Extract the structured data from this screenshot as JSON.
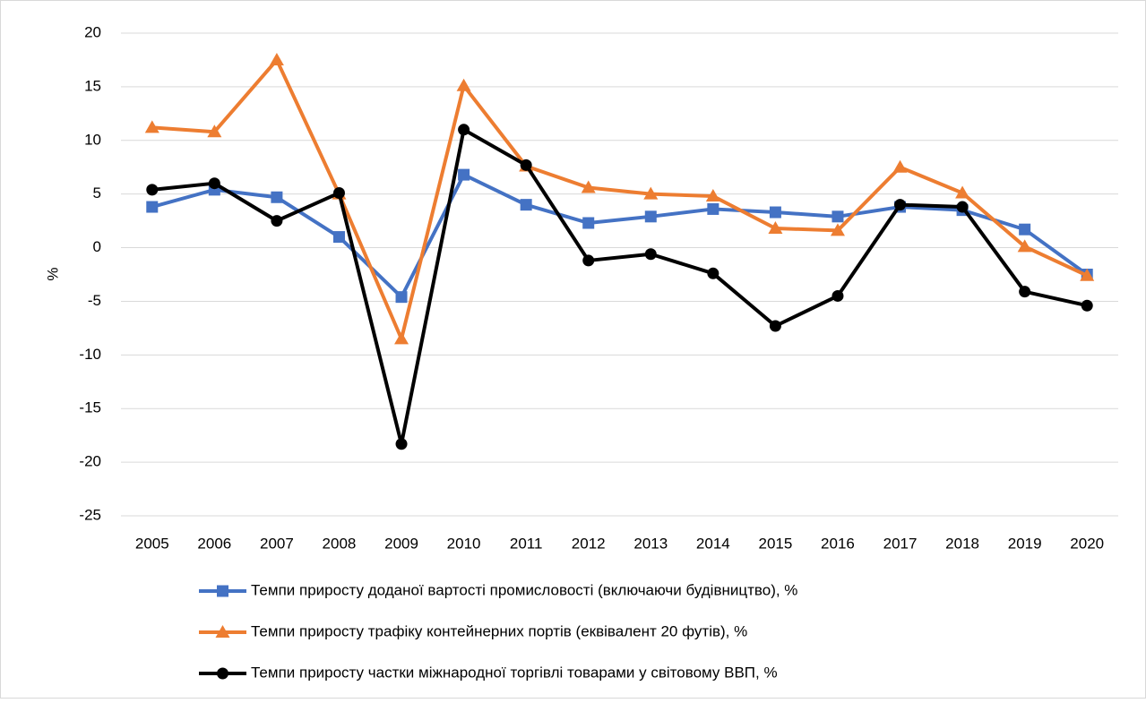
{
  "chart_data": {
    "type": "line",
    "ylabel": "%",
    "categories": [
      "2005",
      "2006",
      "2007",
      "2008",
      "2009",
      "2010",
      "2011",
      "2012",
      "2013",
      "2014",
      "2015",
      "2016",
      "2017",
      "2018",
      "2019",
      "2020"
    ],
    "series": [
      {
        "name": "Темпи приросту доданої вартості промисловості (включаючи будівництво), %",
        "color": "#4472c4",
        "marker": "square",
        "values": [
          3.8,
          5.4,
          4.7,
          1.0,
          -4.6,
          6.8,
          4.0,
          2.3,
          2.9,
          3.6,
          3.3,
          2.9,
          3.8,
          3.5,
          1.7,
          -2.5
        ]
      },
      {
        "name": "Темпи приросту трафіку контейнерних портів (еквівалент 20 футів), %",
        "color": "#ed7d31",
        "marker": "triangle",
        "values": [
          11.2,
          10.8,
          17.5,
          5.0,
          -8.5,
          15.1,
          7.6,
          5.6,
          5.0,
          4.8,
          1.8,
          1.6,
          7.5,
          5.1,
          0.1,
          -2.6
        ]
      },
      {
        "name": "Темпи приросту частки міжнародної торгівлі товарами у світовому ВВП, %",
        "color": "#000000",
        "marker": "circle",
        "values": [
          5.4,
          6.0,
          2.5,
          5.1,
          -18.3,
          11.0,
          7.7,
          -1.2,
          -0.6,
          -2.4,
          -7.3,
          -4.5,
          4.0,
          3.8,
          -4.1,
          -5.4
        ]
      }
    ],
    "ylim": [
      -25,
      20
    ],
    "yticks": [
      -25,
      -20,
      -15,
      -10,
      -5,
      0,
      5,
      10,
      15,
      20
    ],
    "grid": true,
    "legend": "bottom"
  }
}
